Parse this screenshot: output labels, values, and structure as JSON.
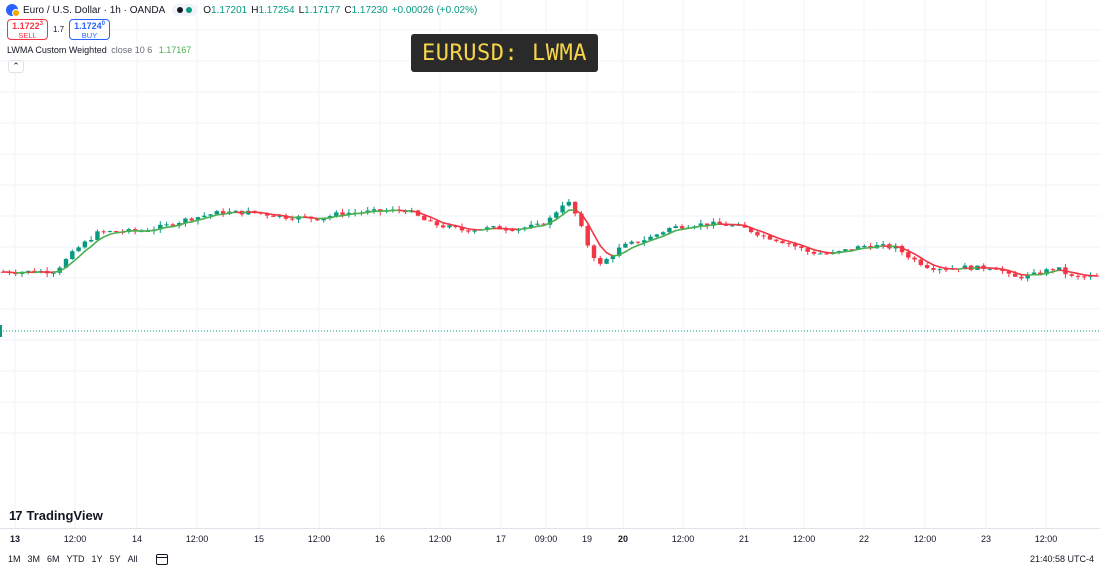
{
  "symbol": {
    "name": "Euro / U.S. Dollar · 1h · OANDA",
    "ohlc": [
      {
        "k": "O",
        "v": "1.17201"
      },
      {
        "k": "H",
        "v": "1.17254"
      },
      {
        "k": "L",
        "v": "1.17177"
      },
      {
        "k": "C",
        "v": "1.17230"
      }
    ],
    "change": "+0.00026 (+0.02%)"
  },
  "trade": {
    "sell_price": "1.1722",
    "sell_price_sup": "3",
    "sell_label": "SELL",
    "spread": "1.7",
    "buy_price": "1.1724",
    "buy_price_sup": "0",
    "buy_label": "BUY"
  },
  "indicator": {
    "name": "LWMA Custom Weighted",
    "params": "close 10 6",
    "value": "1.17167"
  },
  "title_overlay": "EURUSD: LWMA",
  "brand": "TradingView",
  "time_axis": [
    {
      "label": "13",
      "bold": true
    },
    {
      "label": "12:00",
      "bold": false
    },
    {
      "label": "14",
      "bold": false
    },
    {
      "label": "12:00",
      "bold": false
    },
    {
      "label": "15",
      "bold": false
    },
    {
      "label": "12:00",
      "bold": false
    },
    {
      "label": "16",
      "bold": false
    },
    {
      "label": "12:00",
      "bold": false
    },
    {
      "label": "17",
      "bold": false
    },
    {
      "label": "09:00",
      "bold": false
    },
    {
      "label": "19",
      "bold": false
    },
    {
      "label": "20",
      "bold": true
    },
    {
      "label": "12:00",
      "bold": false
    },
    {
      "label": "21",
      "bold": false
    },
    {
      "label": "12:00",
      "bold": false
    },
    {
      "label": "22",
      "bold": false
    },
    {
      "label": "12:00",
      "bold": false
    },
    {
      "label": "23",
      "bold": false
    },
    {
      "label": "12:00",
      "bold": false
    }
  ],
  "ranges": [
    "1M",
    "3M",
    "6M",
    "YTD",
    "1Y",
    "5Y",
    "All"
  ],
  "clock": "21:40:58 UTC-4",
  "colors": {
    "up": "#089981",
    "down": "#f23645",
    "ma_up": "#4caf50",
    "ma_down": "#f23645",
    "grid": "#f0f3fa",
    "last_price_line": "#089981",
    "title_text": "#f7d54a"
  },
  "chart_data": {
    "type": "candlestick",
    "path_points": [
      [
        0,
        0.4455
      ],
      [
        0.018,
        0.4452
      ],
      [
        0.032,
        0.4466
      ],
      [
        0.05,
        0.4477
      ],
      [
        0.07,
        0.503
      ],
      [
        0.09,
        0.545
      ],
      [
        0.11,
        0.546
      ],
      [
        0.13,
        0.548
      ],
      [
        0.15,
        0.56
      ],
      [
        0.17,
        0.577
      ],
      [
        0.185,
        0.586
      ],
      [
        0.2,
        0.594
      ],
      [
        0.23,
        0.594
      ],
      [
        0.26,
        0.583
      ],
      [
        0.29,
        0.579
      ],
      [
        0.31,
        0.592
      ],
      [
        0.34,
        0.596
      ],
      [
        0.37,
        0.6
      ],
      [
        0.39,
        0.567
      ],
      [
        0.42,
        0.55
      ],
      [
        0.45,
        0.555
      ],
      [
        0.47,
        0.554
      ],
      [
        0.49,
        0.561
      ],
      [
        0.5,
        0.578
      ],
      [
        0.515,
        0.627
      ],
      [
        0.525,
        0.58
      ],
      [
        0.535,
        0.508
      ],
      [
        0.545,
        0.461
      ],
      [
        0.565,
        0.508
      ],
      [
        0.59,
        0.53
      ],
      [
        0.61,
        0.556
      ],
      [
        0.63,
        0.564
      ],
      [
        0.655,
        0.565
      ],
      [
        0.675,
        0.556
      ],
      [
        0.695,
        0.535
      ],
      [
        0.715,
        0.519
      ],
      [
        0.735,
        0.495
      ],
      [
        0.755,
        0.489
      ],
      [
        0.77,
        0.5
      ],
      [
        0.785,
        0.51
      ],
      [
        0.8,
        0.51
      ],
      [
        0.815,
        0.505
      ],
      [
        0.83,
        0.477
      ],
      [
        0.845,
        0.457
      ],
      [
        0.86,
        0.454
      ],
      [
        0.875,
        0.457
      ],
      [
        0.89,
        0.455
      ],
      [
        0.905,
        0.459
      ],
      [
        0.92,
        0.43
      ],
      [
        0.94,
        0.438
      ],
      [
        0.96,
        0.456
      ],
      [
        0.975,
        0.431
      ],
      [
        1.0,
        0.434
      ]
    ]
  }
}
